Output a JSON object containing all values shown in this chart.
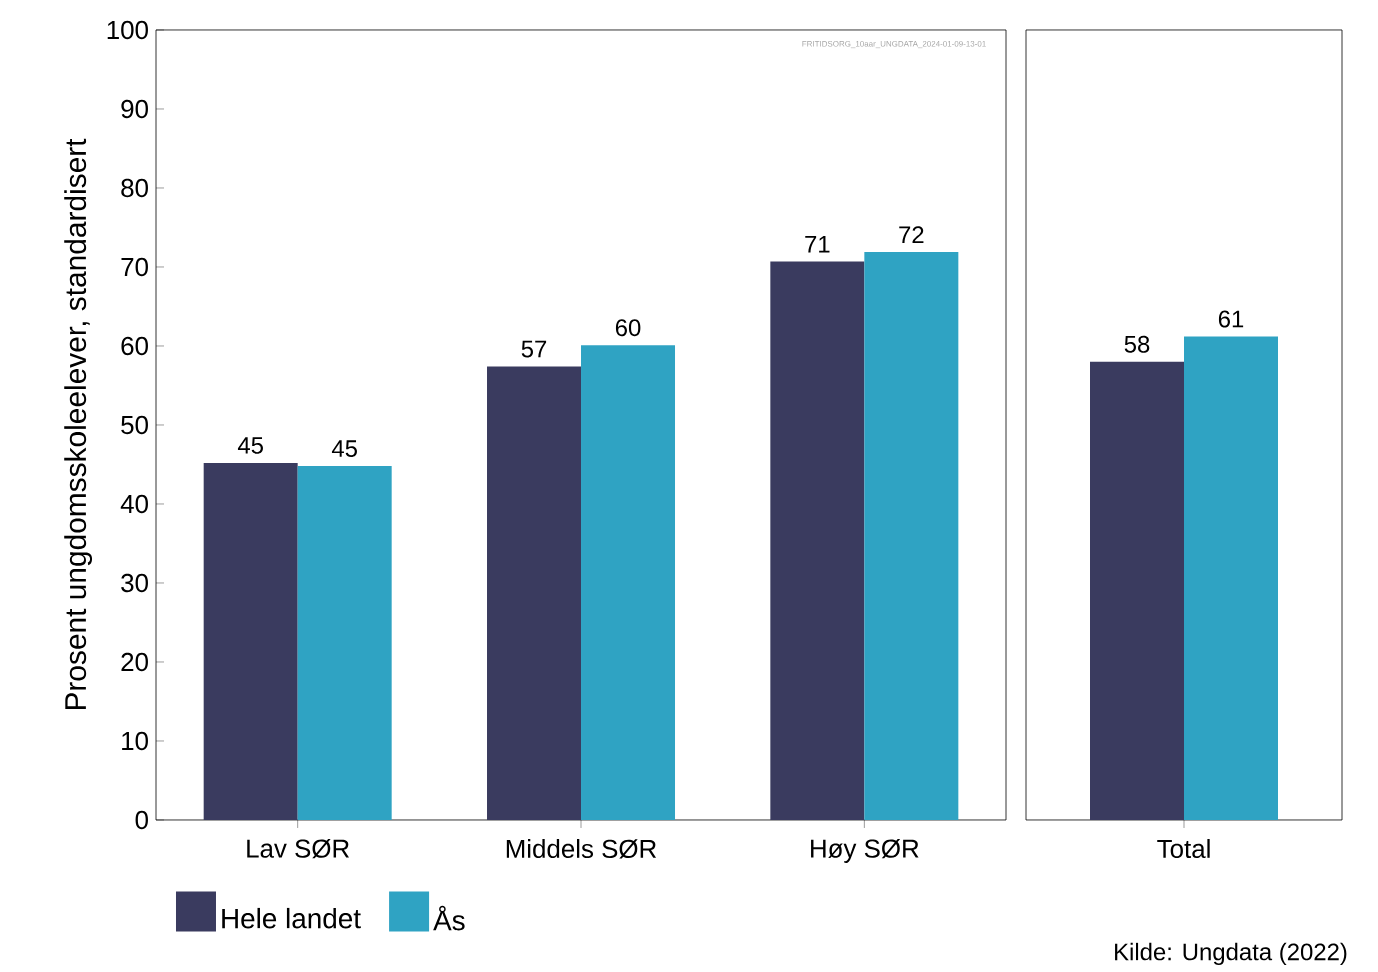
{
  "chart_data": [
    {
      "type": "bar",
      "ylabel": "Prosent ungdomsskoleelever, standardisert",
      "categories": [
        "Lav SØR",
        "Middels SØR",
        "Høy SØR"
      ],
      "series": [
        {
          "name": "Hele landet",
          "color": "#3a3b5f",
          "values": [
            45.2,
            57.4,
            70.7
          ],
          "value_labels": [
            "45",
            "57",
            "71"
          ]
        },
        {
          "name": "Ås",
          "color": "#2fa3c3",
          "values": [
            44.8,
            60.1,
            71.9
          ],
          "value_labels": [
            "45",
            "60",
            "72"
          ]
        }
      ],
      "ylim": [
        0,
        100
      ],
      "yticks": [
        0,
        10,
        20,
        30,
        40,
        50,
        60,
        70,
        80,
        90,
        100
      ],
      "legend": "bottom left",
      "annotations": [
        "FRITIDSORG_10aar_UNGDATA_2024-01-09-13-01"
      ]
    },
    {
      "type": "bar",
      "categories": [
        "Total"
      ],
      "series": [
        {
          "color": "#3a3b5f",
          "values": [
            58.0
          ],
          "value_labels": [
            "58"
          ]
        },
        {
          "color": "#2fa3c3",
          "values": [
            61.2
          ],
          "value_labels": [
            "61"
          ]
        }
      ],
      "ylim": [
        0,
        100
      ],
      "tick_labels": "x",
      "annotations": [
        "Kilde: Ungdata (2022)"
      ]
    }
  ]
}
